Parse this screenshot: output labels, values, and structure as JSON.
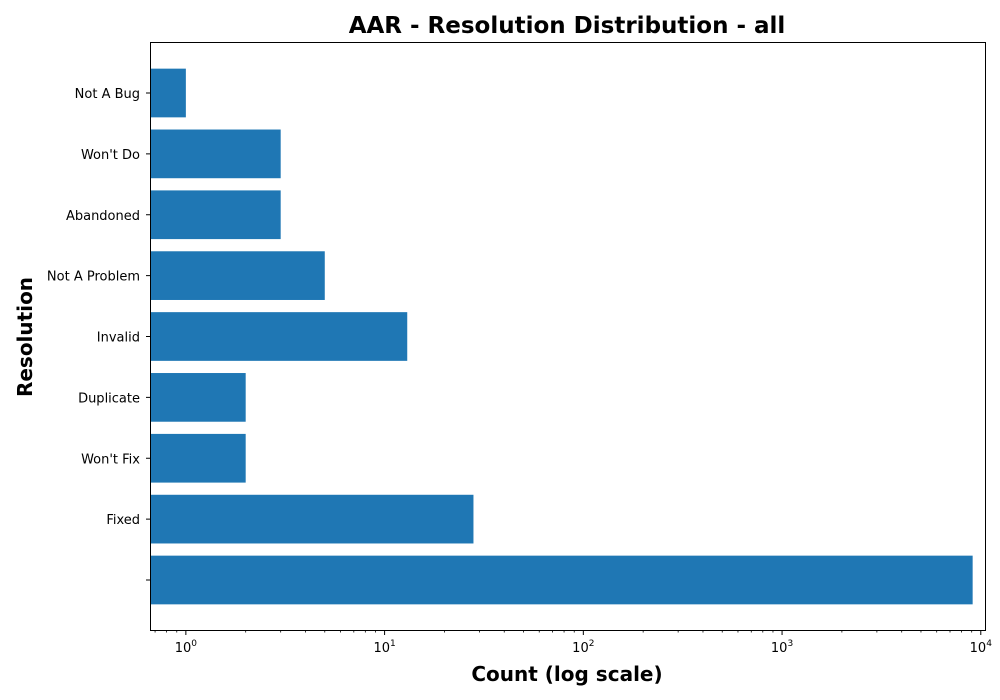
{
  "chart_data": {
    "type": "bar",
    "orientation": "horizontal",
    "title": "AAR - Resolution Distribution - all",
    "xlabel": "Count (log scale)",
    "ylabel": "Resolution",
    "x_scale": "log",
    "xlim": [
      0.66,
      10500
    ],
    "x_ticks": [
      {
        "value": 1,
        "base": "10",
        "exp": "0"
      },
      {
        "value": 10,
        "base": "10",
        "exp": "1"
      },
      {
        "value": 100,
        "base": "10",
        "exp": "2"
      },
      {
        "value": 1000,
        "base": "10",
        "exp": "3"
      },
      {
        "value": 10000,
        "base": "10",
        "exp": "4"
      }
    ],
    "grid": false,
    "legend": "none",
    "bar_color": "#1f77b4",
    "categories": [
      "",
      "Fixed",
      "Won't Fix",
      "Duplicate",
      "Invalid",
      "Not A Problem",
      "Abandoned",
      "Won't Do",
      "Not A Bug"
    ],
    "values": [
      9100,
      28,
      2,
      2,
      13,
      5,
      3,
      3,
      1
    ]
  }
}
